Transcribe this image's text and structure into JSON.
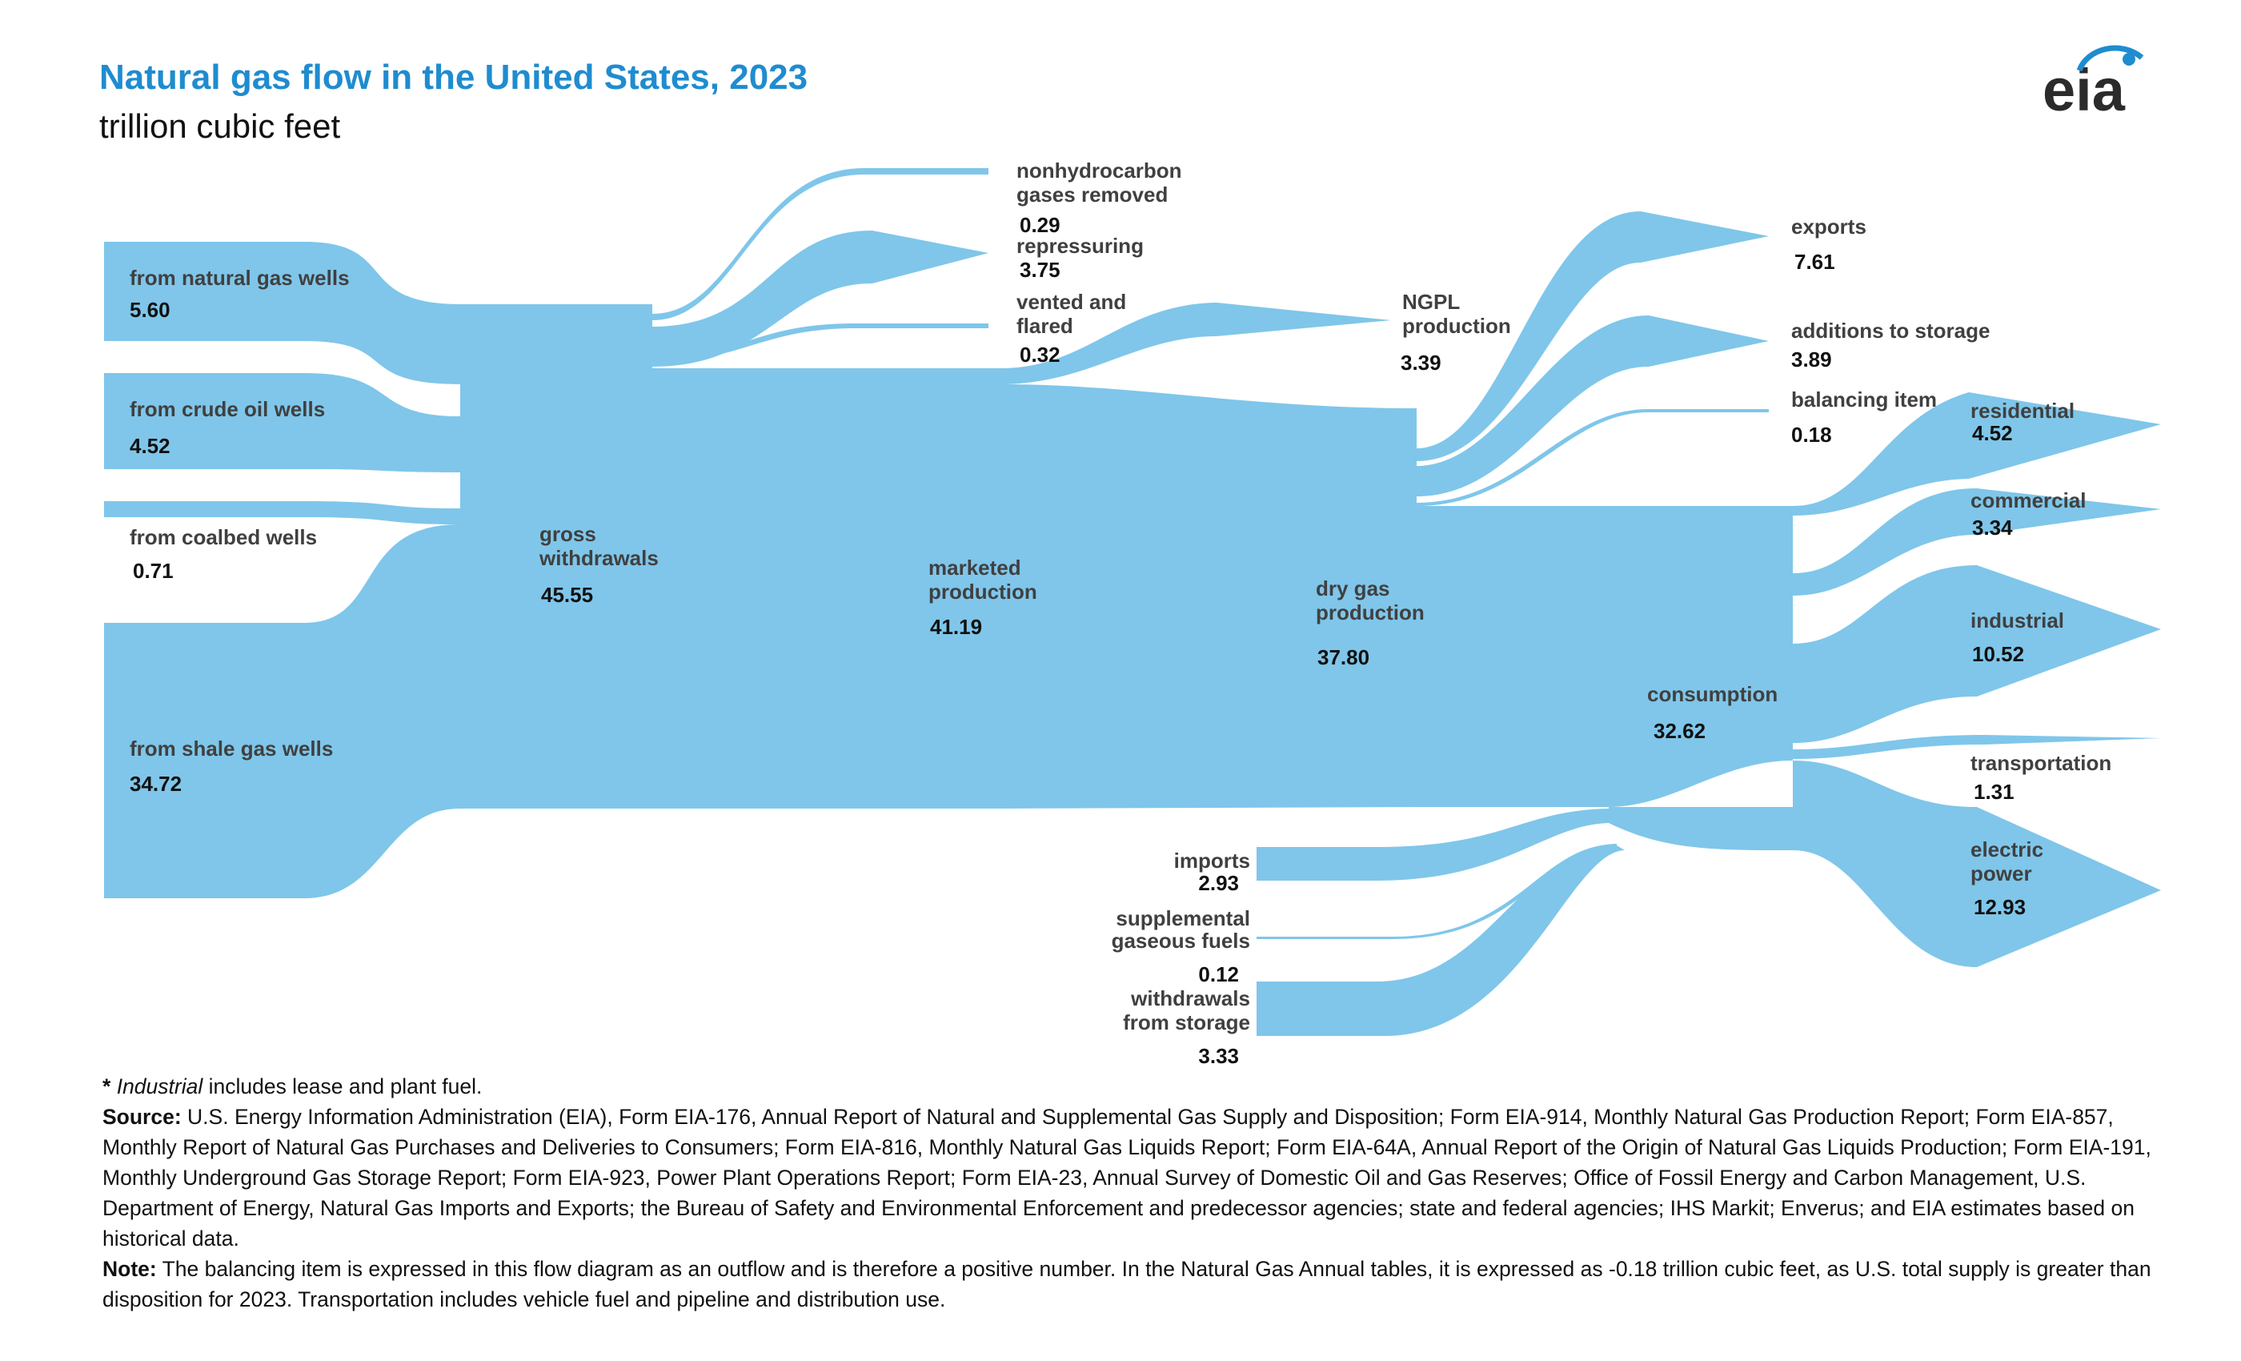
{
  "title": "Natural gas flow in the United States, 2023",
  "subtitle": "trillion cubic feet",
  "logo_text": "eia",
  "colors": {
    "flow": "#7fc6ea",
    "title": "#1f8ccf"
  },
  "nodes": {
    "natural_gas_wells": {
      "label": "from natural gas wells",
      "value": "5.60"
    },
    "crude_oil_wells": {
      "label": "from crude oil wells",
      "value": "4.52"
    },
    "coalbed_wells": {
      "label": "from coalbed wells",
      "value": "0.71"
    },
    "shale_gas_wells": {
      "label": "from shale gas wells",
      "value": "34.72"
    },
    "gross_withdrawals": {
      "label_1": "gross",
      "label_2": "withdrawals",
      "value": "45.55"
    },
    "nonhydrocarbon": {
      "label_1": "nonhydrocarbon",
      "label_2": "gases removed",
      "value": "0.29"
    },
    "repressuring": {
      "label": "repressuring",
      "value": "3.75"
    },
    "vented_flared": {
      "label_1": "vented and",
      "label_2": "flared",
      "value": "0.32"
    },
    "marketed_production": {
      "label_1": "marketed",
      "label_2": "production",
      "value": "41.19"
    },
    "ngpl_production": {
      "label_1": "NGPL",
      "label_2": "production",
      "value": "3.39"
    },
    "dry_gas_production": {
      "label_1": "dry gas",
      "label_2": "production",
      "value": "37.80"
    },
    "exports": {
      "label": "exports",
      "value": "7.61"
    },
    "additions_to_storage": {
      "label": "additions to storage",
      "value": "3.89"
    },
    "balancing_item": {
      "label": "balancing item",
      "value": "0.18"
    },
    "imports": {
      "label": "imports",
      "value": "2.93"
    },
    "supplemental": {
      "label_1": "supplemental",
      "label_2": "gaseous fuels",
      "value": "0.12"
    },
    "withdrawals_storage": {
      "label_1": "withdrawals",
      "label_2": "from storage",
      "value": "3.33"
    },
    "consumption": {
      "label": "consumption",
      "value": "32.62"
    },
    "residential": {
      "label": "residential",
      "value": "4.52"
    },
    "commercial": {
      "label": "commercial",
      "value": "3.34"
    },
    "industrial": {
      "label": "industrial",
      "value": "10.52"
    },
    "transportation": {
      "label": "transportation",
      "value": "1.31"
    },
    "electric_power": {
      "label_1": "electric",
      "label_2": "power",
      "value": "12.93"
    }
  },
  "notes": {
    "footnote_star": "*",
    "footnote_italic": "Industrial",
    "footnote_rest": " includes lease and plant fuel.",
    "source_label": "Source:",
    "source_text": "U.S. Energy Information Administration (EIA), Form EIA-176, Annual Report of Natural and Supplemental Gas Supply and Disposition; Form EIA-914, Monthly Natural Gas Production Report; Form EIA-857, Monthly Report of Natural Gas Purchases and Deliveries to Consumers; Form EIA-816, Monthly Natural Gas Liquids Report; Form EIA-64A, Annual Report of the Origin of Natural Gas Liquids Production; Form EIA-191, Monthly Underground Gas Storage Report; Form EIA-923, Power Plant Operations Report; Form EIA-23, Annual Survey of Domestic Oil and Gas Reserves; Office of Fossil Energy and Carbon Management, U.S. Department of Energy, Natural Gas Imports and Exports; the Bureau of Safety and Environmental Enforcement and predecessor agencies; state and federal agencies; IHS Markit; Enverus; and EIA estimates based on historical data.",
    "note_label": "Note:",
    "note_text": "The balancing item is expressed in this flow diagram as an outflow and is therefore a positive number. In the Natural Gas Annual tables, it is expressed as -0.18 trillion cubic feet, as U.S. total supply is greater than disposition for 2023. Transportation includes vehicle fuel and pipeline and distribution use."
  }
}
